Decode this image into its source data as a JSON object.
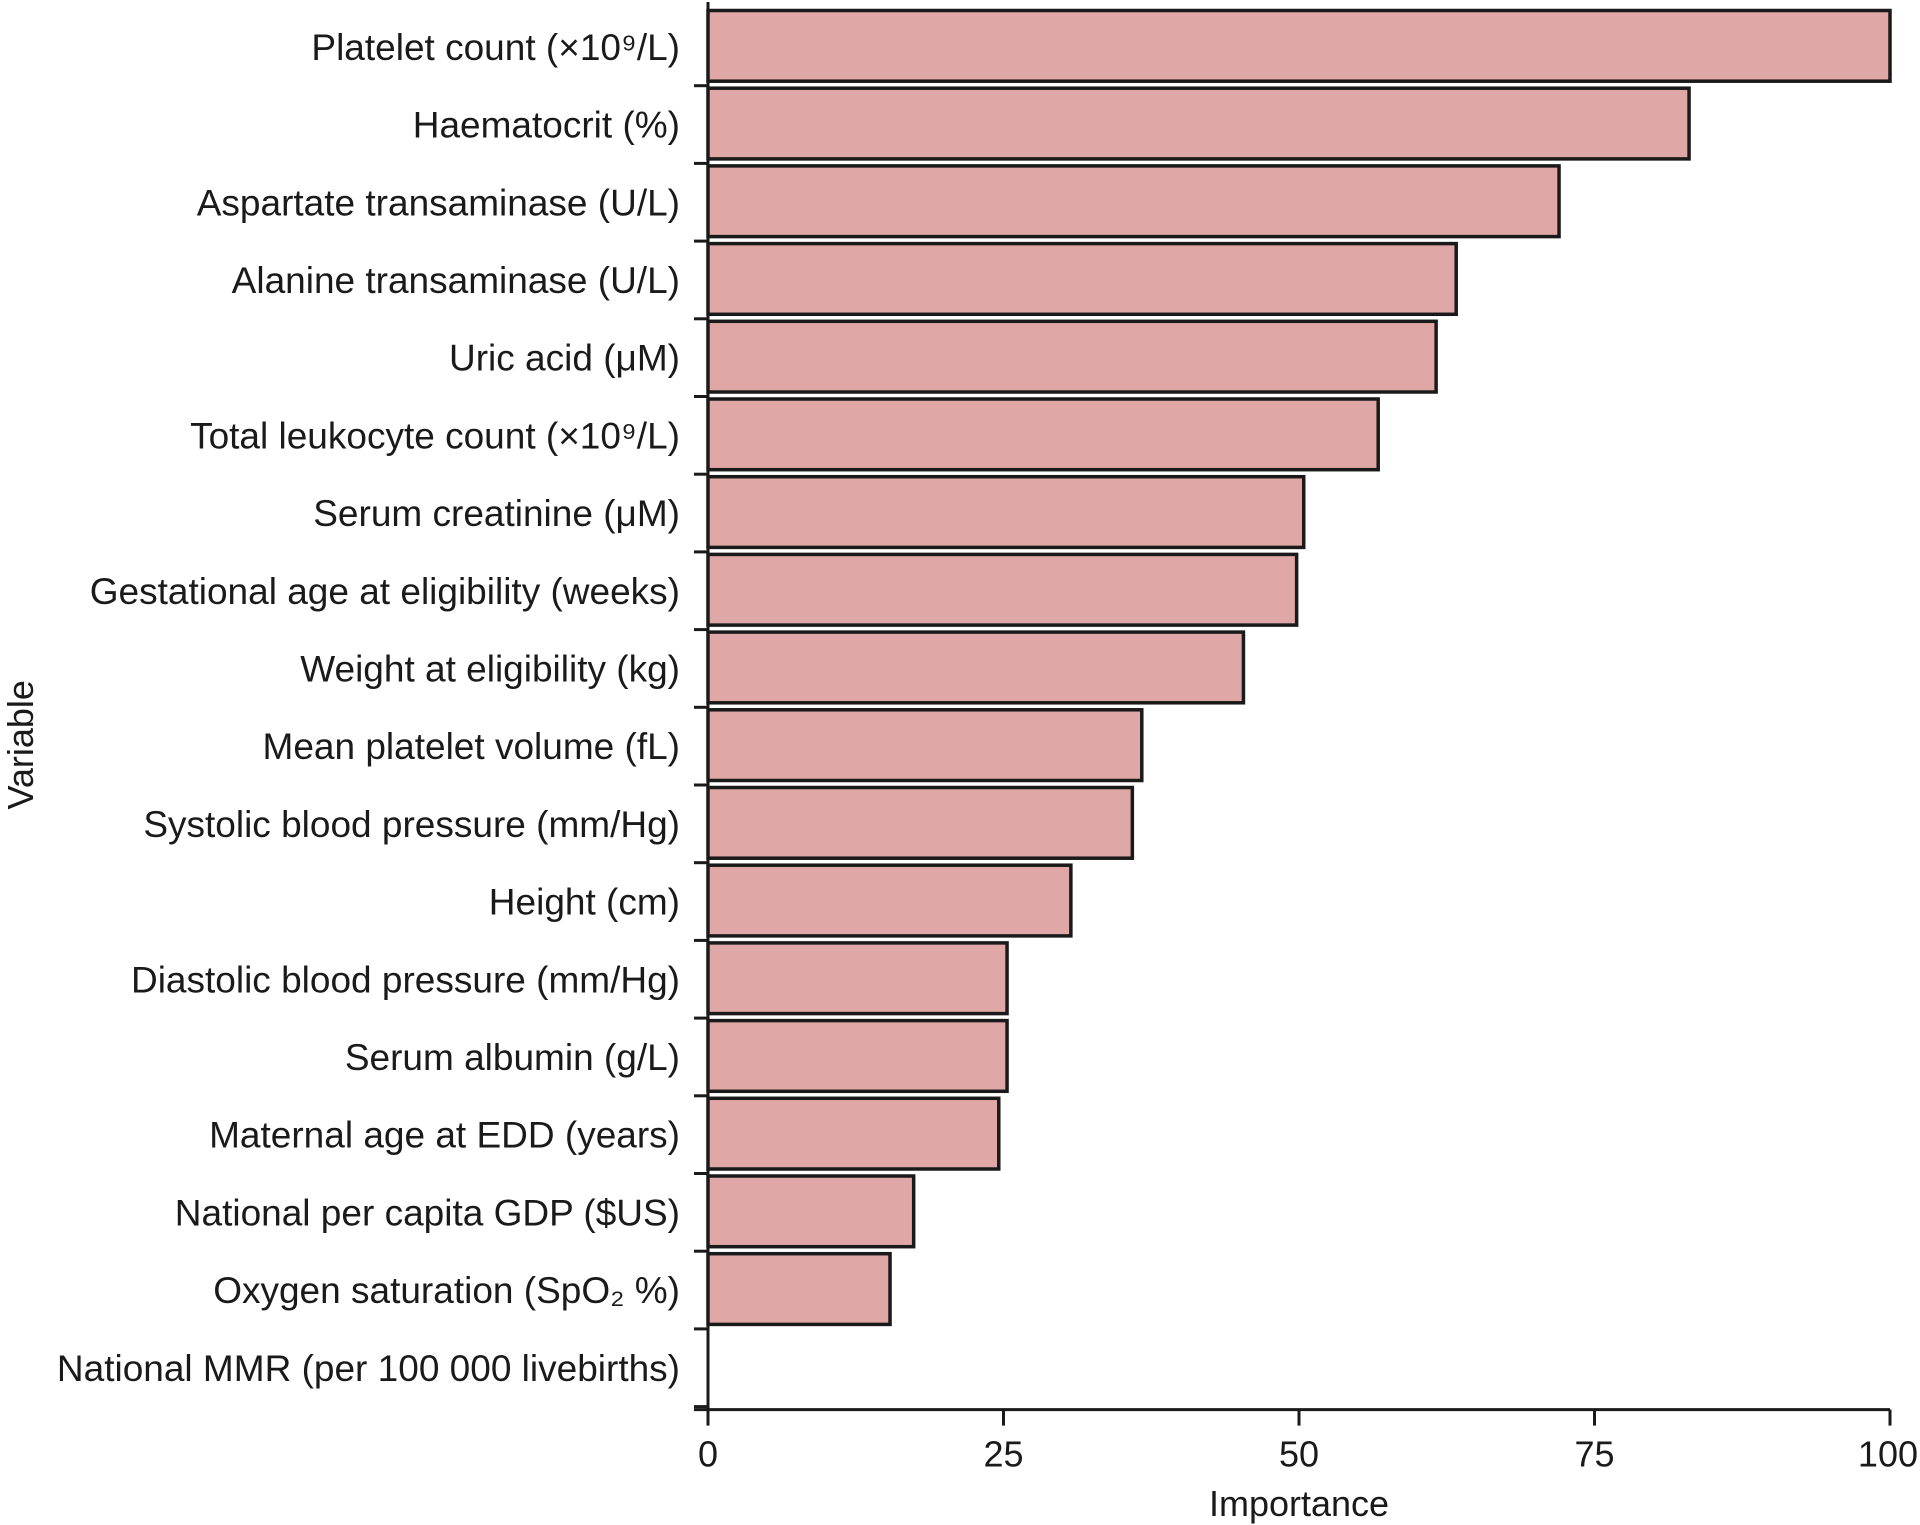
{
  "chart_data": {
    "type": "bar",
    "orientation": "horizontal",
    "title": "",
    "xlabel": "Importance",
    "ylabel": "Variable",
    "xlim": [
      0,
      100
    ],
    "xticks": [
      0,
      25,
      50,
      75,
      100
    ],
    "grid": false,
    "bar_color": "#dfa7a6",
    "categories": [
      "Platelet count (×10⁹/L)",
      "Haematocrit (%)",
      "Aspartate transaminase (U/L)",
      "Alanine transaminase (U/L)",
      "Uric acid (μM)",
      "Total leukocyte count (×10⁹/L)",
      "Serum creatinine (μM)",
      "Gestational age at eligibility (weeks)",
      "Weight at eligibility (kg)",
      "Mean platelet volume (fL)",
      "Systolic blood pressure (mm/Hg)",
      "Height (cm)",
      "Diastolic blood pressure (mm/Hg)",
      "Serum albumin (g/L)",
      "Maternal age at EDD (years)",
      "National per capita GDP ($US)",
      "Oxygen saturation (SpO₂ %)",
      "National MMR (per 100 000 livebirths)"
    ],
    "values": [
      100,
      83,
      72,
      63.3,
      61.6,
      56.7,
      50.4,
      49.8,
      45.3,
      36.7,
      35.9,
      30.7,
      25.3,
      25.3,
      24.6,
      17.4,
      15.4,
      0
    ]
  }
}
